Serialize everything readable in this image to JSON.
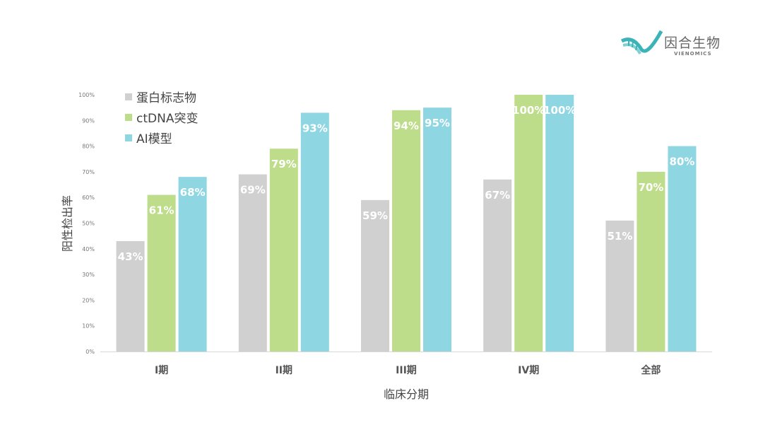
{
  "logo": {
    "name": "因合生物",
    "sub": "VIENOMICS"
  },
  "chart_data": {
    "type": "bar",
    "categories": [
      "I期",
      "II期",
      "III期",
      "IV期",
      "全部"
    ],
    "series": [
      {
        "name": "蛋白标志物",
        "color": "#d0d0d0",
        "values": [
          43,
          69,
          59,
          67,
          51
        ]
      },
      {
        "name": "ctDNA突变",
        "color": "#bedd8a",
        "values": [
          61,
          79,
          94,
          100,
          70
        ]
      },
      {
        "name": "AI模型",
        "color": "#8fd6e3",
        "values": [
          68,
          93,
          95,
          100,
          80
        ]
      }
    ],
    "xlabel": "临床分期",
    "ylabel": "阳性检出率",
    "ylim": [
      0,
      100
    ],
    "yticks": [
      "0%",
      "10%",
      "20%",
      "30%",
      "40%",
      "50%",
      "60%",
      "70%",
      "80%",
      "90%",
      "100%"
    ],
    "value_suffix": "%",
    "legend": "top-left",
    "grid": false
  }
}
